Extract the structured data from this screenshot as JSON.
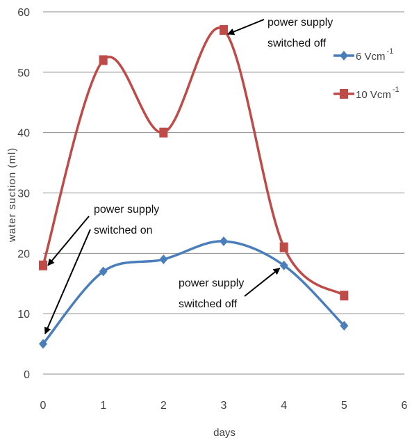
{
  "chart_data": {
    "type": "line",
    "title": "",
    "xlabel": "days",
    "ylabel": "water suction (ml)",
    "xlim": [
      0,
      6
    ],
    "ylim": [
      0,
      60
    ],
    "x_ticks": [
      0,
      1,
      2,
      3,
      4,
      5,
      6
    ],
    "y_ticks": [
      0,
      10,
      20,
      30,
      40,
      50,
      60
    ],
    "grid": "horizontal",
    "legend_position": "right",
    "series": [
      {
        "name": "6 Vcm",
        "unit_superscript": "-1",
        "color": "#4a7ebb",
        "marker": "diamond",
        "x": [
          0,
          1,
          2,
          3,
          4,
          5
        ],
        "y": [
          5,
          17,
          19,
          22,
          18,
          8
        ]
      },
      {
        "name": "10 Vcm",
        "unit_superscript": "-1",
        "color": "#be4b48",
        "marker": "square",
        "x": [
          0,
          1,
          2,
          3,
          4,
          5
        ],
        "y": [
          18,
          52,
          40,
          57,
          21,
          13
        ]
      }
    ],
    "annotations": [
      {
        "lines": [
          "power supply",
          "switched off"
        ],
        "points_to": [
          {
            "x": 3,
            "y": 57
          }
        ]
      },
      {
        "lines": [
          "power supply",
          "switched on"
        ],
        "points_to": [
          {
            "x": 0,
            "y": 18
          },
          {
            "x": 0,
            "y": 6
          }
        ]
      },
      {
        "lines": [
          "power supply",
          "switched off"
        ],
        "points_to": [
          {
            "x": 4,
            "y": 18
          }
        ]
      }
    ]
  }
}
